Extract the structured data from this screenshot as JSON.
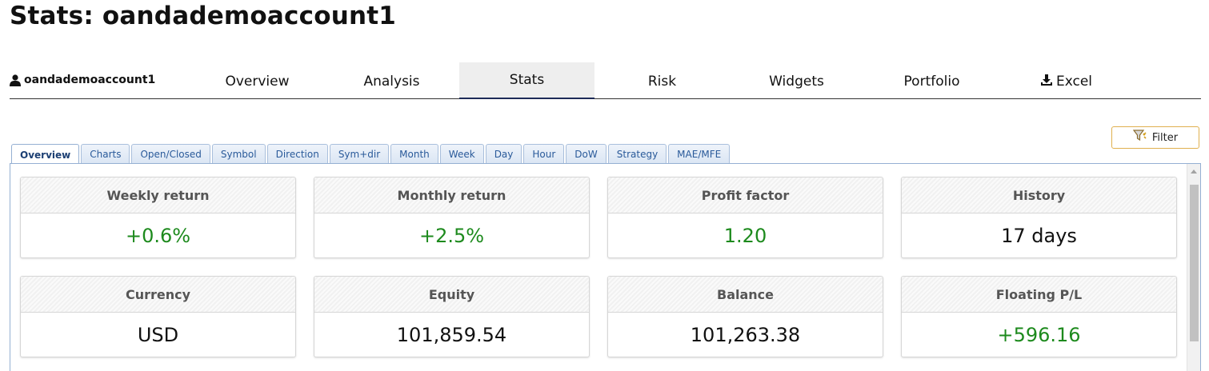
{
  "page": {
    "title": "Stats: oandademoaccount1"
  },
  "nav": {
    "account_name": "oandademoaccount1",
    "items": [
      {
        "label": "Overview"
      },
      {
        "label": "Analysis"
      },
      {
        "label": "Stats",
        "active": true
      },
      {
        "label": "Risk"
      },
      {
        "label": "Widgets"
      },
      {
        "label": "Portfolio"
      },
      {
        "label": "Excel",
        "icon": "download-icon"
      }
    ]
  },
  "filter": {
    "label": "Filter",
    "icon": "filter-icon"
  },
  "sub_tabs": [
    {
      "label": "Overview",
      "active": true
    },
    {
      "label": "Charts"
    },
    {
      "label": "Open/Closed"
    },
    {
      "label": "Symbol"
    },
    {
      "label": "Direction"
    },
    {
      "label": "Sym+dir"
    },
    {
      "label": "Month"
    },
    {
      "label": "Week"
    },
    {
      "label": "Day"
    },
    {
      "label": "Hour"
    },
    {
      "label": "DoW"
    },
    {
      "label": "Strategy"
    },
    {
      "label": "MAE/MFE"
    }
  ],
  "cards": [
    {
      "title": "Weekly return",
      "value": "+0.6%",
      "positive": true
    },
    {
      "title": "Monthly return",
      "value": "+2.5%",
      "positive": true
    },
    {
      "title": "Profit factor",
      "value": "1.20",
      "positive": true
    },
    {
      "title": "History",
      "value": "17 days",
      "positive": false
    },
    {
      "title": "Currency",
      "value": "USD",
      "positive": false
    },
    {
      "title": "Equity",
      "value": "101,859.54",
      "positive": false
    },
    {
      "title": "Balance",
      "value": "101,263.38",
      "positive": false
    },
    {
      "title": "Floating P/L",
      "value": "+596.16",
      "positive": true
    }
  ],
  "colors": {
    "positive": "#1d8a1d",
    "nav_active_border": "#1d2b57",
    "filter_border": "#e0b04f"
  }
}
